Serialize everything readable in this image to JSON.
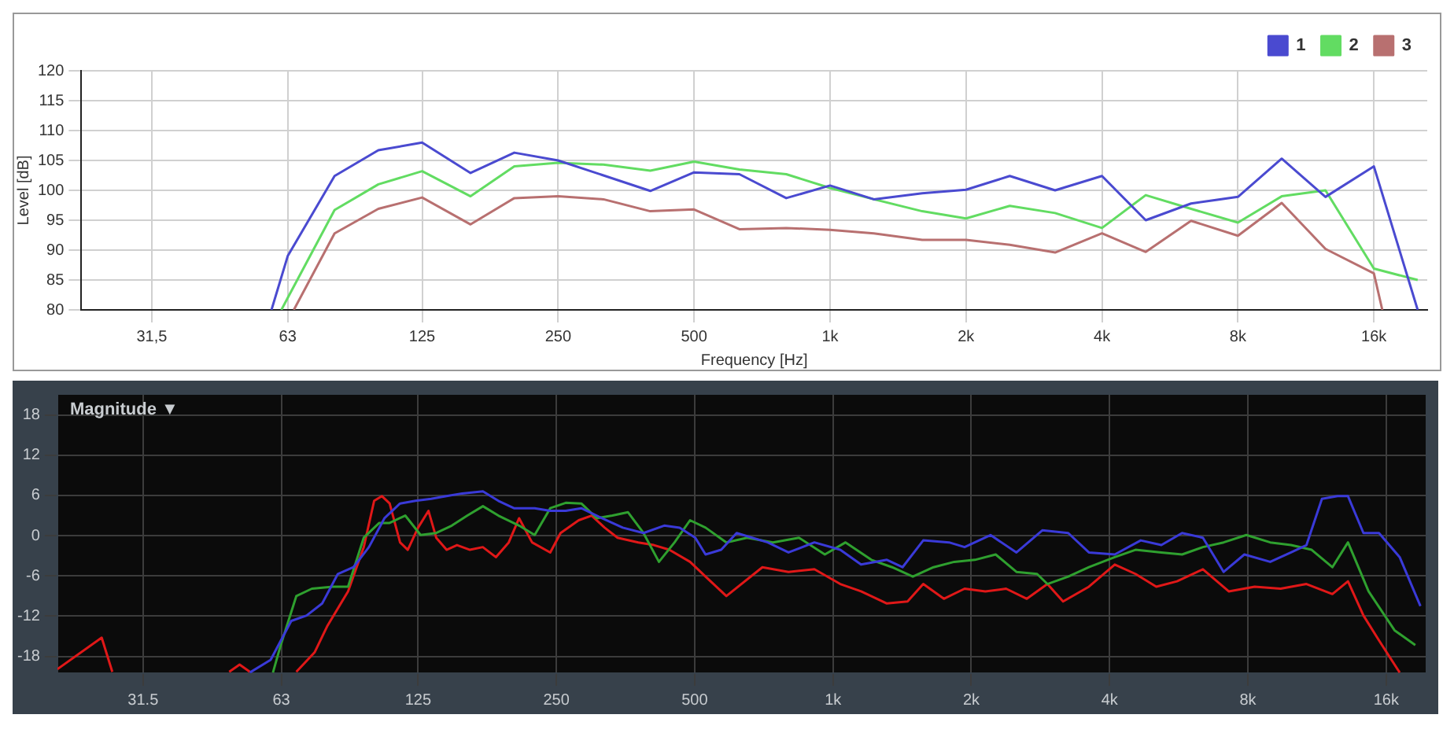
{
  "chart_data": [
    {
      "type": "line",
      "xlabel": "Frequency [Hz]",
      "ylabel": "Level [dB]",
      "log": "x",
      "grid": true,
      "legend": "top right",
      "marker": "none",
      "line_style": "solid",
      "xlim": [
        22,
        21000
      ],
      "xticks": [
        {
          "value": 31.5,
          "label": "31,5"
        },
        63,
        125,
        250,
        500,
        {
          "value": 1000,
          "label": "1k"
        },
        {
          "value": 2000,
          "label": "2k"
        },
        {
          "value": 4000,
          "label": "4k"
        },
        {
          "value": 8000,
          "label": "8k"
        },
        {
          "value": 16000,
          "label": "16k"
        }
      ],
      "ylim": [
        80,
        120
      ],
      "yticks": [
        80,
        85,
        90,
        95,
        100,
        105,
        110,
        115,
        120
      ],
      "series": [
        {
          "name": "1",
          "color": "#4a4ad0",
          "x": [
            58,
            63,
            80,
            100,
            125,
            160,
            200,
            250,
            315,
            400,
            500,
            630,
            800,
            1000,
            1250,
            1600,
            2000,
            2500,
            3150,
            4000,
            5000,
            6300,
            8000,
            10000,
            12500,
            16000,
            20000
          ],
          "values": [
            80,
            89,
            102.4,
            106.7,
            108,
            102.9,
            106.3,
            105,
            102.5,
            99.9,
            103,
            102.7,
            98.7,
            100.8,
            98.5,
            99.5,
            100.1,
            102.4,
            100,
            102.4,
            95,
            97.8,
            98.9,
            105.3,
            98.9,
            104,
            80
          ]
        },
        {
          "name": "2",
          "color": "#62dc62",
          "x": [
            61,
            63,
            80,
            100,
            125,
            160,
            200,
            250,
            315,
            400,
            500,
            630,
            800,
            1000,
            1250,
            1600,
            2000,
            2500,
            3150,
            4000,
            5000,
            6300,
            8000,
            10000,
            12500,
            16000,
            20000
          ],
          "values": [
            80,
            82,
            96.7,
            101,
            103.2,
            99,
            104,
            104.6,
            104.3,
            103.3,
            104.8,
            103.5,
            102.7,
            100.4,
            98.5,
            96.5,
            95.3,
            97.4,
            96.2,
            93.7,
            99.2,
            96.9,
            94.6,
            99,
            100,
            86.9,
            85
          ]
        },
        {
          "name": "3",
          "color": "#b87070",
          "x": [
            65,
            80,
            100,
            125,
            160,
            200,
            250,
            315,
            400,
            500,
            630,
            800,
            1000,
            1250,
            1600,
            2000,
            2500,
            3150,
            4000,
            5000,
            6300,
            8000,
            10000,
            12500,
            16000,
            16700
          ],
          "values": [
            80,
            92.8,
            96.9,
            98.8,
            94.3,
            98.7,
            99,
            98.5,
            96.5,
            96.8,
            93.5,
            93.7,
            93.4,
            92.8,
            91.7,
            91.7,
            90.9,
            89.6,
            92.8,
            89.7,
            94.9,
            92.4,
            97.9,
            90.2,
            86.1,
            80
          ]
        }
      ]
    },
    {
      "type": "line",
      "log": "x",
      "grid": true,
      "marker": "none",
      "line_style": "solid",
      "annotations": [
        "Magnitude ▼"
      ],
      "xlim": [
        20.5,
        19500
      ],
      "xticks": [
        31.5,
        63,
        125,
        250,
        500,
        {
          "value": 1000,
          "label": "1k"
        },
        {
          "value": 2000,
          "label": "2k"
        },
        {
          "value": 4000,
          "label": "4k"
        },
        {
          "value": 8000,
          "label": "8k"
        },
        {
          "value": 16000,
          "label": "16k"
        }
      ],
      "ylim": [
        -20.5,
        21
      ],
      "yticks": [
        -18,
        -12,
        -6,
        0,
        6,
        12,
        18
      ],
      "series": [
        {
          "color": "#3a3ad8",
          "x": [
            53.8,
            59.7,
            66.2,
            71.5,
            77.3,
            83.6,
            90.4,
            97.7,
            105.6,
            114.2,
            123.4,
            133.4,
            144.2,
            155.9,
            173,
            186.9,
            202.1,
            224.2,
            242.4,
            262,
            283.3,
            314.2,
            348.6,
            386.8,
            429.1,
            463.7,
            501.5,
            528,
            570.9,
            617,
            721,
            800,
            911,
            1037,
            1151,
            1310,
            1417,
            1572,
            1789,
            1934,
            2202,
            2508,
            2855,
            3251,
            3606,
            4105,
            4675,
            5185,
            5753,
            6385,
            7084,
            7859,
            8946,
            9929,
            10729,
            11595,
            12540,
            13211,
            14276,
            15431,
            17121,
            18995
          ],
          "values": [
            -20.4,
            -18.5,
            -12.7,
            -11.9,
            -10.1,
            -5.7,
            -4.7,
            -1.7,
            2.6,
            4.8,
            5.2,
            5.5,
            5.9,
            6.3,
            6.6,
            5.2,
            4.1,
            4.1,
            3.7,
            3.7,
            4.1,
            2.6,
            1.2,
            0.4,
            1.5,
            1.2,
            -0.3,
            -2.8,
            -2.1,
            0.4,
            -1.0,
            -2.5,
            -1.0,
            -2.1,
            -4.3,
            -3.6,
            -4.7,
            -0.7,
            -1.0,
            -1.7,
            0.1,
            -2.5,
            0.8,
            0.4,
            -2.5,
            -2.8,
            -0.7,
            -1.4,
            0.4,
            -0.3,
            -5.4,
            -2.8,
            -3.9,
            -2.5,
            -1.4,
            5.5,
            5.9,
            5.9,
            0.4,
            0.4,
            -3.2,
            -10.5
          ]
        },
        {
          "color": "#2fa02f",
          "x": [
            60.4,
            62.8,
            67.9,
            73.4,
            81.5,
            88,
            95.2,
            102.9,
            108.4,
            117.2,
            126.6,
            136.9,
            148,
            160,
            173,
            186.9,
            207.4,
            224.2,
            242.4,
            262,
            283.3,
            306,
            331,
            358,
            386.8,
            418,
            452,
            488.5,
            528,
            586,
            650,
            740,
            843,
            960,
            1065,
            1212,
            1345,
            1492,
            1655,
            1836,
            2037,
            2260,
            2508,
            2781,
            2929,
            3251,
            3606,
            4105,
            4555,
            5185,
            5753,
            6385,
            7084,
            7938,
            8946,
            9929,
            11010,
            12216,
            13211,
            14648,
            16683,
            18513
          ],
          "values": [
            -20.4,
            -16.3,
            -9.0,
            -7.9,
            -7.6,
            -7.6,
            -0.3,
            1.9,
            1.9,
            3.0,
            0.1,
            0.4,
            1.5,
            3.0,
            4.4,
            3.0,
            1.5,
            0.1,
            4.1,
            4.9,
            4.8,
            2.6,
            3.0,
            3.5,
            0.4,
            -3.9,
            -1.0,
            2.3,
            1.2,
            -1.0,
            -0.3,
            -1.0,
            -0.3,
            -2.8,
            -1.0,
            -3.6,
            -4.7,
            -6.1,
            -4.7,
            -3.9,
            -3.6,
            -2.8,
            -5.4,
            -5.7,
            -7.2,
            -6.1,
            -4.7,
            -3.2,
            -2.1,
            -2.5,
            -2.8,
            -1.7,
            -1.0,
            0.1,
            -1.0,
            -1.4,
            -2.1,
            -4.7,
            -1.0,
            -8.3,
            -14.1,
            -16.3
          ]
        },
        {
          "color": "#e01818",
          "x": [
            20.5,
            25.6,
            27,
            38,
            48.5,
            51.1,
            53.8,
            60,
            67.9,
            74.4,
            79.4,
            88,
            95.2,
            100.3,
            104.3,
            108.4,
            114.2,
            118.7,
            125,
            131.7,
            136.9,
            144.2,
            151.9,
            162.1,
            172.9,
            184.6,
            196.9,
            207.4,
            221.3,
            242.4,
            255.3,
            279.6,
            298.3,
            318.4,
            339.7,
            376.9,
            407.4,
            440.3,
            488.5,
            528,
            586,
            702,
            800,
            911,
            1037,
            1151,
            1310,
            1453,
            1572,
            1743,
            1934,
            2146,
            2381,
            2642,
            2929,
            3168,
            3606,
            4105,
            4555,
            5054,
            5608,
            6385,
            7268,
            8275,
            9424,
            10729,
            12216,
            13211,
            14276,
            15431,
            17121
          ],
          "values": [
            -19.9,
            -15.2,
            -20.3,
            null,
            -20.3,
            -19.2,
            -20.3,
            null,
            -20.3,
            -17.4,
            -13.4,
            -8.3,
            -1.7,
            5.2,
            5.9,
            4.8,
            -1.0,
            -2.1,
            1.2,
            3.7,
            -0.3,
            -2.1,
            -1.4,
            -2.1,
            -1.7,
            -3.2,
            -1.0,
            2.6,
            -1.0,
            -2.5,
            0.4,
            2.3,
            3.0,
            1.2,
            -0.3,
            -1.0,
            -1.4,
            -2.1,
            -3.9,
            -6.1,
            -9.0,
            -4.7,
            -5.4,
            -5.0,
            -7.2,
            -8.3,
            -10.1,
            -9.8,
            -7.2,
            -9.4,
            -7.9,
            -8.3,
            -7.9,
            -9.4,
            -7.2,
            -9.8,
            -7.6,
            -4.3,
            -5.7,
            -7.6,
            -6.8,
            -5.0,
            -8.3,
            -7.6,
            -7.9,
            -7.2,
            -8.7,
            -6.8,
            -11.9,
            -15.6,
            -20.4
          ]
        }
      ]
    }
  ]
}
